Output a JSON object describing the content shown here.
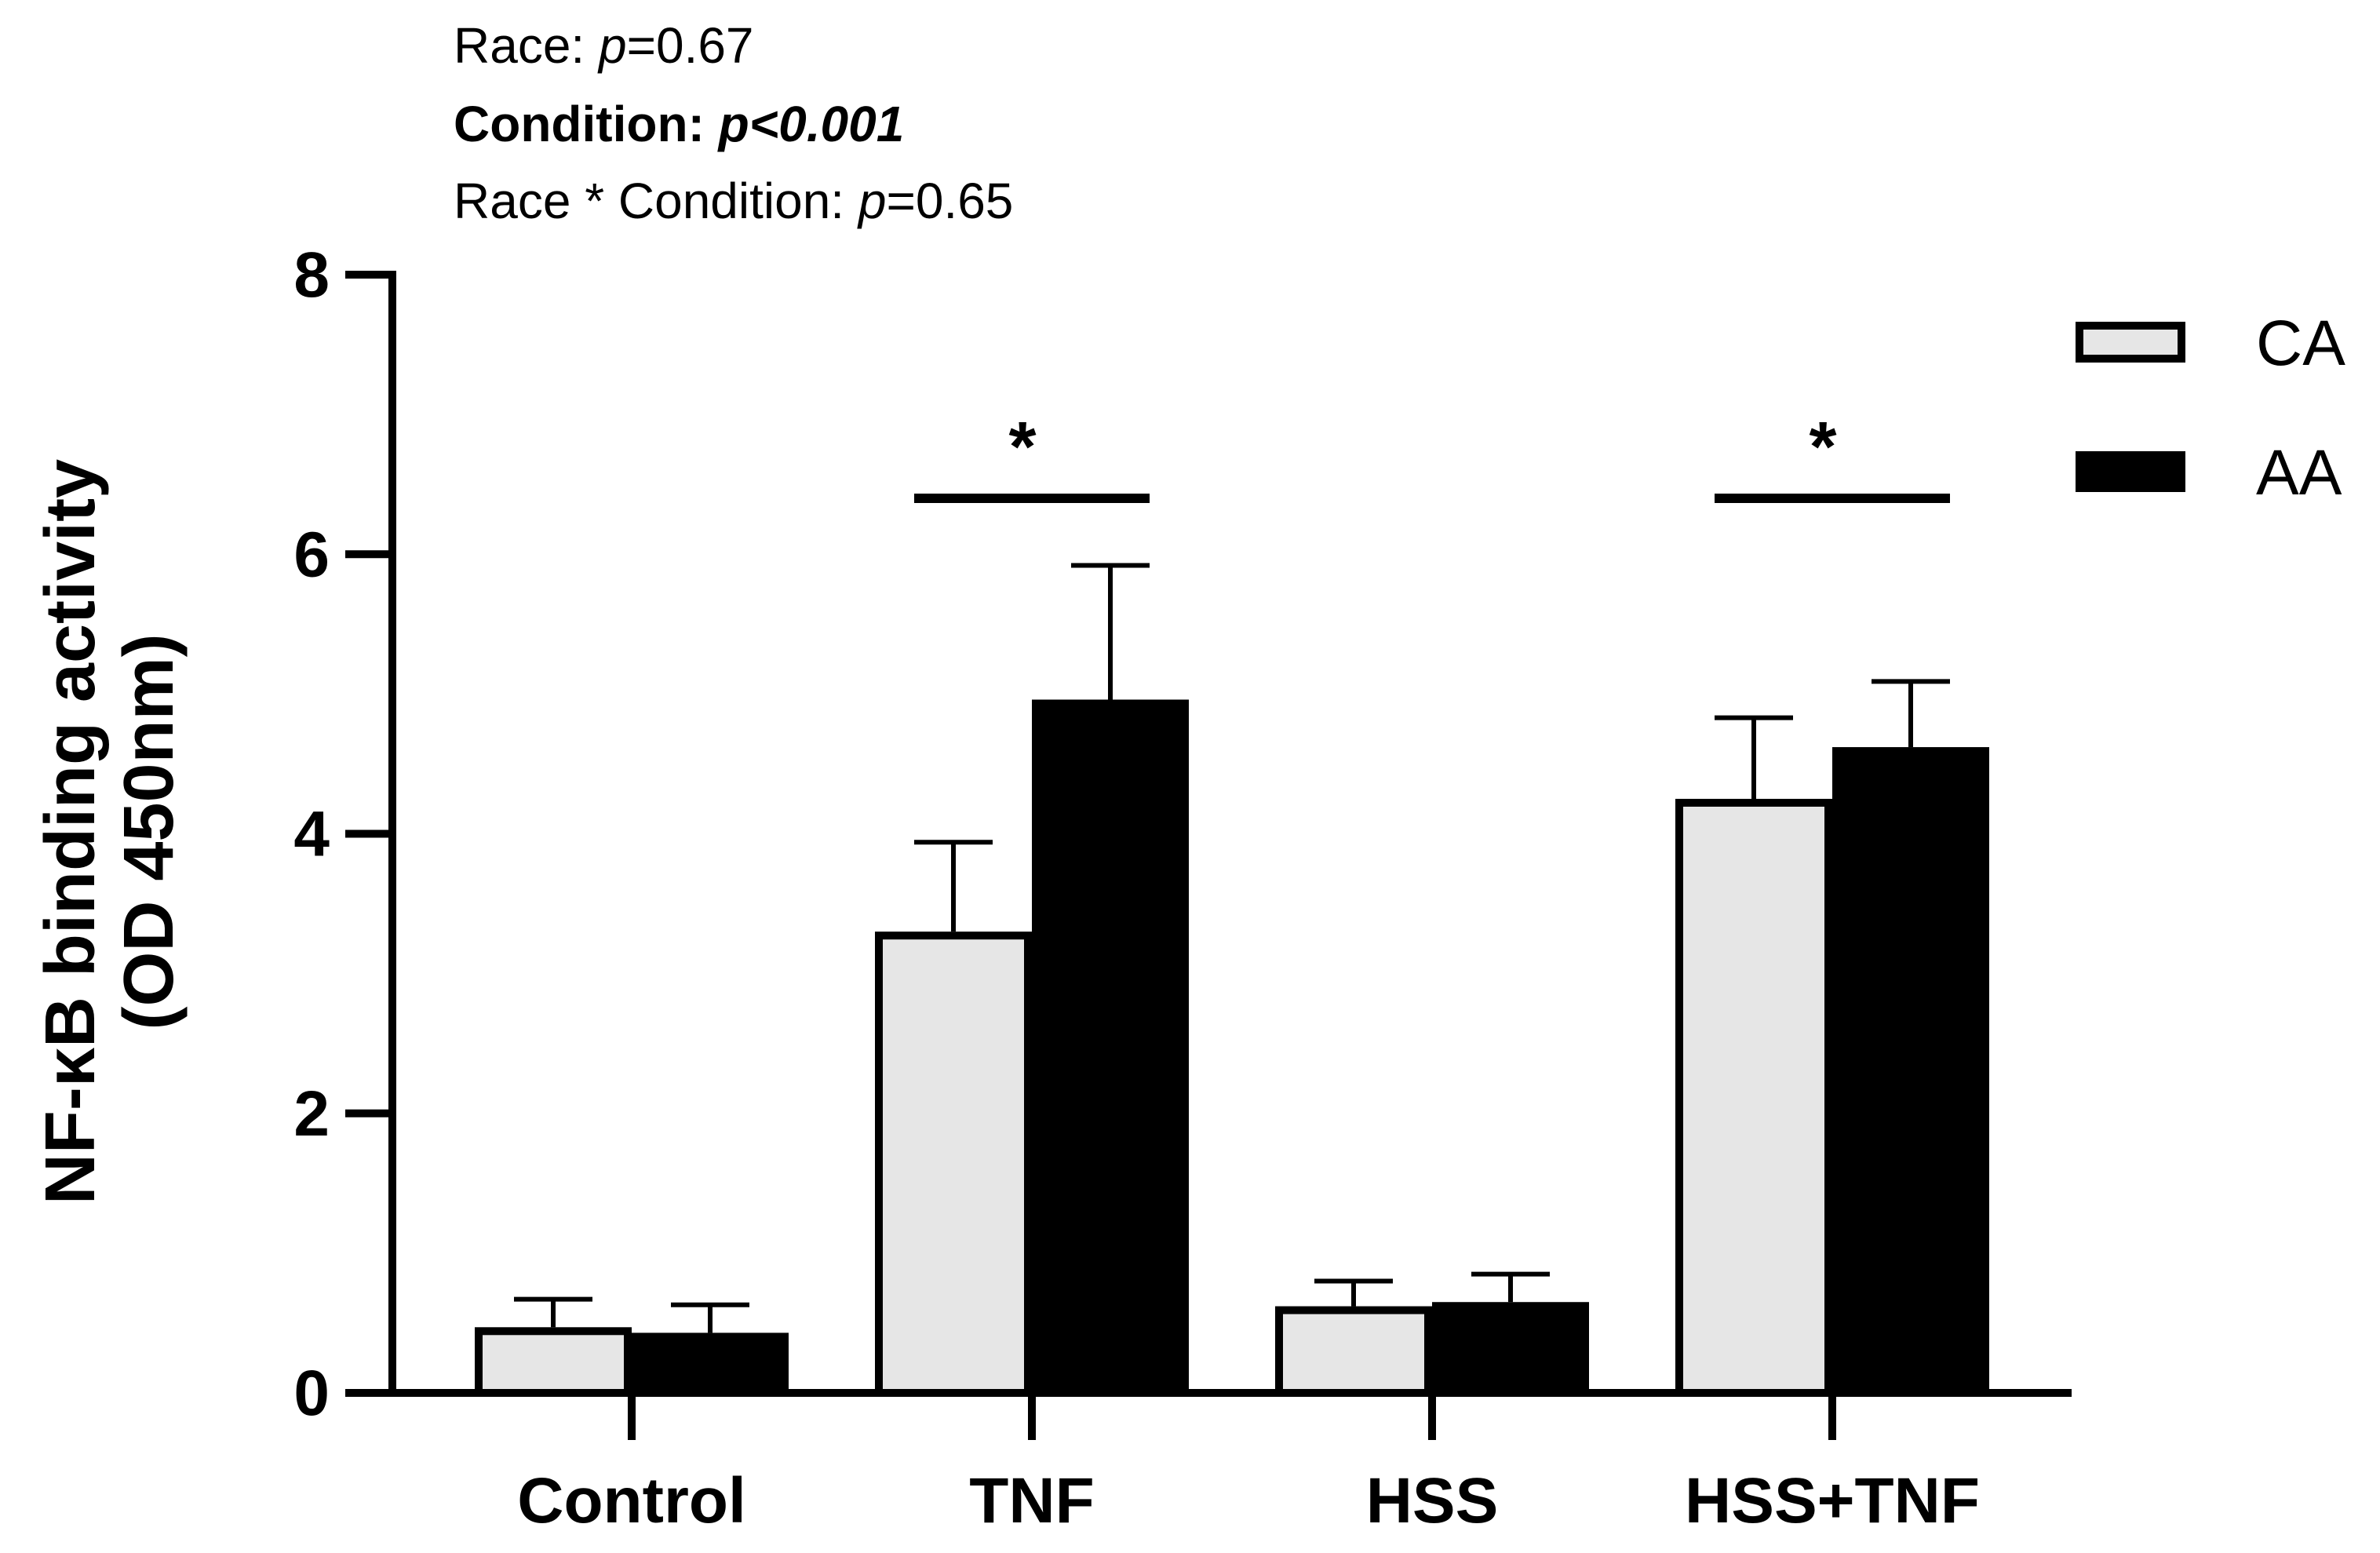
{
  "stats": {
    "race": {
      "prefix": "Race: ",
      "p": "p",
      "value": "=0.67"
    },
    "condition": {
      "prefix": "Condition: ",
      "value": "p<0.001"
    },
    "interaction": {
      "prefix": "Race * Condition: ",
      "p": "p",
      "value": "=0.65"
    }
  },
  "chart_data": {
    "type": "bar",
    "title": "",
    "ylabel_line1": "NF-κB binding activity",
    "ylabel_line2": "(OD 450nm)",
    "xlabel": "",
    "ylim": [
      0,
      8
    ],
    "yticks": [
      0,
      2,
      4,
      6,
      8
    ],
    "categories": [
      "Control",
      "TNF",
      "HSS",
      "HSS+TNF"
    ],
    "series": [
      {
        "name": "CA",
        "values": [
          0.47,
          3.3,
          0.62,
          4.25
        ],
        "errors": [
          0.2,
          0.64,
          0.18,
          0.58
        ],
        "color": "#e6e6e6"
      },
      {
        "name": "AA",
        "values": [
          0.43,
          4.96,
          0.65,
          4.62
        ],
        "errors": [
          0.2,
          0.96,
          0.2,
          0.47
        ],
        "color": "#000000"
      }
    ],
    "significance": [
      {
        "category": "TNF",
        "label": "*"
      },
      {
        "category": "HSS+TNF",
        "label": "*"
      }
    ],
    "legend_position": "top-right",
    "grid": false
  }
}
